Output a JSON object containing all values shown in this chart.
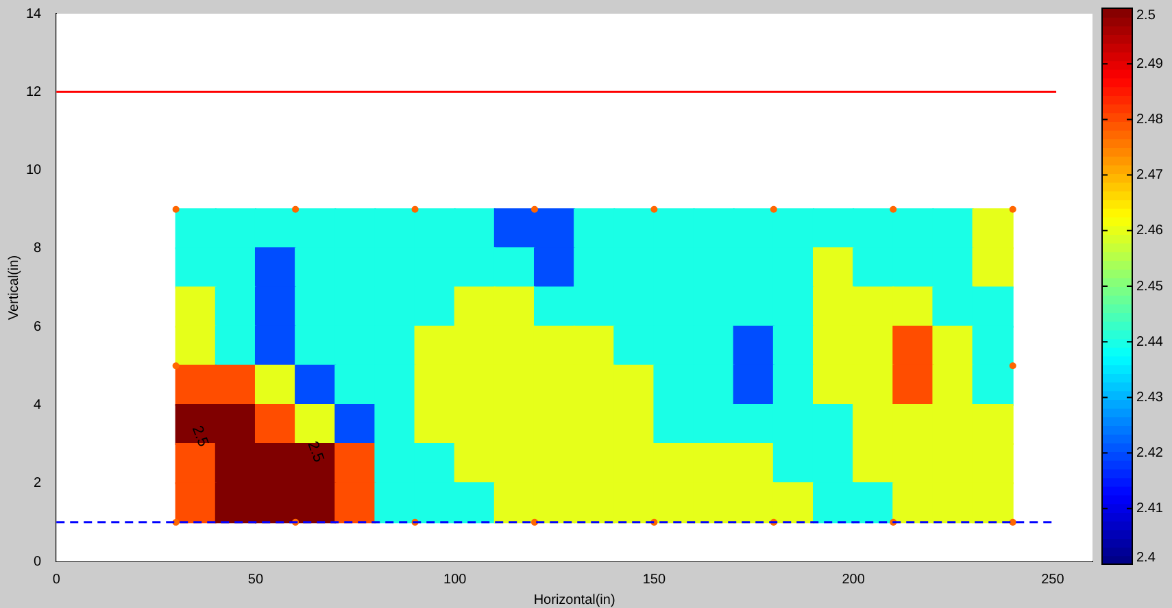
{
  "chart_data": {
    "type": "scatter",
    "xlabel": "Horizontal(in)",
    "ylabel": "Vertical(in)",
    "xlim": [
      0,
      260
    ],
    "xticks": [
      0,
      50,
      100,
      150,
      200,
      250
    ],
    "ylim": [
      0,
      14
    ],
    "yticks": [
      0,
      2,
      4,
      6,
      8,
      10,
      12,
      14
    ],
    "clim": [
      2.4,
      2.5
    ],
    "cticks": [
      2.4,
      2.41,
      2.42,
      2.43,
      2.44,
      2.45,
      2.46,
      2.47,
      2.48,
      2.49,
      2.5
    ],
    "series": [
      {
        "type": "scatter",
        "marker": "square",
        "x": [
          35,
          45,
          55,
          65,
          75,
          85,
          95,
          105,
          115,
          125,
          135,
          145,
          155,
          165,
          175,
          185,
          195,
          205,
          215,
          225,
          235,
          35,
          45,
          55,
          65,
          75,
          85,
          95,
          105,
          115,
          125,
          135,
          145,
          155,
          165,
          175,
          185,
          195,
          205,
          215,
          225,
          235,
          35,
          45,
          55,
          65,
          75,
          85,
          95,
          105,
          115,
          125,
          135,
          145,
          155,
          165,
          175,
          185,
          195,
          205,
          215,
          225,
          235,
          35,
          45,
          55,
          65,
          75,
          85,
          95,
          105,
          115,
          125,
          135,
          145,
          155,
          165,
          175,
          185,
          195,
          205,
          215,
          225,
          235,
          35,
          45,
          55,
          65,
          75,
          85,
          95,
          105,
          115,
          125,
          135,
          145,
          155,
          165,
          175,
          185,
          195,
          205,
          215,
          225,
          235,
          35,
          45,
          55,
          65,
          75,
          85,
          95,
          105,
          115,
          125,
          135,
          145,
          155,
          165,
          175,
          185,
          195,
          205,
          215,
          225,
          235,
          35,
          45,
          55,
          65,
          75,
          85,
          95,
          105,
          115,
          125,
          135,
          145,
          155,
          165,
          175,
          185,
          195,
          205,
          215,
          225,
          235,
          35,
          45,
          55,
          65,
          75,
          85,
          95,
          105,
          115,
          125,
          135,
          145,
          155,
          165,
          175,
          185,
          195,
          205,
          215,
          225,
          235
        ],
        "values": [
          8.5,
          8.5,
          8.5,
          8.5,
          8.5,
          8.5,
          8.5,
          8.5,
          8.5,
          8.5,
          8.5,
          8.5,
          8.5,
          8.5,
          8.5,
          8.5,
          8.5,
          8.5,
          8.5,
          8.5,
          8.5,
          7.5,
          7.5,
          7.5,
          7.5,
          7.5,
          7.5,
          7.5,
          7.5,
          7.5,
          7.5,
          7.5,
          7.5,
          7.5,
          7.5,
          7.5,
          7.5,
          7.5,
          7.5,
          7.5,
          7.5,
          7.5,
          6.5,
          6.5,
          6.5,
          6.5,
          6.5,
          6.5,
          6.5,
          6.5,
          6.5,
          6.5,
          6.5,
          6.5,
          6.5,
          6.5,
          6.5,
          6.5,
          6.5,
          6.5,
          6.5,
          6.5,
          6.5,
          5.5,
          5.5,
          5.5,
          5.5,
          5.5,
          5.5,
          5.5,
          5.5,
          5.5,
          5.5,
          5.5,
          5.5,
          5.5,
          5.5,
          5.5,
          5.5,
          5.5,
          5.5,
          5.5,
          5.5,
          5.5,
          4.5,
          4.5,
          4.5,
          4.5,
          4.5,
          4.5,
          4.5,
          4.5,
          4.5,
          4.5,
          4.5,
          4.5,
          4.5,
          4.5,
          4.5,
          4.5,
          4.5,
          4.5,
          4.5,
          4.5,
          4.5,
          3.5,
          3.5,
          3.5,
          3.5,
          3.5,
          3.5,
          3.5,
          3.5,
          3.5,
          3.5,
          3.5,
          3.5,
          3.5,
          3.5,
          3.5,
          3.5,
          3.5,
          3.5,
          3.5,
          3.5,
          3.5,
          2.5,
          2.5,
          2.5,
          2.5,
          2.5,
          2.5,
          2.5,
          2.5,
          2.5,
          2.5,
          2.5,
          2.5,
          2.5,
          2.5,
          2.5,
          2.5,
          2.5,
          2.5,
          2.5,
          2.5,
          2.5,
          1.5,
          1.5,
          1.5,
          1.5,
          1.5,
          1.5,
          1.5,
          1.5,
          1.5,
          1.5,
          1.5,
          1.5,
          1.5,
          1.5,
          1.5,
          1.5,
          1.5,
          1.5,
          1.5,
          1.5,
          1.5
        ],
        "colors": [
          "#1affe6",
          "#1affe6",
          "#1affe6",
          "#1affe6",
          "#1affe6",
          "#1affe6",
          "#1affe6",
          "#1affe6",
          "#004dff",
          "#004dff",
          "#1affe6",
          "#1affe6",
          "#1affe6",
          "#1affe6",
          "#1affe6",
          "#1affe6",
          "#1affe6",
          "#1affe6",
          "#1affe6",
          "#1affe6",
          "#e6ff1a",
          "#1affe6",
          "#1affe6",
          "#004dff",
          "#1affe6",
          "#1affe6",
          "#1affe6",
          "#1affe6",
          "#1affe6",
          "#1affe6",
          "#004dff",
          "#1affe6",
          "#1affe6",
          "#1affe6",
          "#1affe6",
          "#1affe6",
          "#1affe6",
          "#e6ff1a",
          "#1affe6",
          "#1affe6",
          "#1affe6",
          "#e6ff1a",
          "#e6ff1a",
          "#1affe6",
          "#004dff",
          "#1affe6",
          "#1affe6",
          "#1affe6",
          "#1affe6",
          "#e6ff1a",
          "#e6ff1a",
          "#1affe6",
          "#1affe6",
          "#1affe6",
          "#1affe6",
          "#1affe6",
          "#1affe6",
          "#1affe6",
          "#e6ff1a",
          "#e6ff1a",
          "#e6ff1a",
          "#1affe6",
          "#1affe6",
          "#e6ff1a",
          "#1affe6",
          "#004dff",
          "#1affe6",
          "#1affe6",
          "#1affe6",
          "#e6ff1a",
          "#e6ff1a",
          "#e6ff1a",
          "#e6ff1a",
          "#e6ff1a",
          "#1affe6",
          "#1affe6",
          "#1affe6",
          "#004dff",
          "#1affe6",
          "#e6ff1a",
          "#e6ff1a",
          "#ff4d00",
          "#e6ff1a",
          "#1affe6",
          "#ff4d00",
          "#ff4d00",
          "#e6ff1a",
          "#004dff",
          "#1affe6",
          "#1affe6",
          "#e6ff1a",
          "#e6ff1a",
          "#e6ff1a",
          "#e6ff1a",
          "#e6ff1a",
          "#e6ff1a",
          "#1affe6",
          "#1affe6",
          "#004dff",
          "#1affe6",
          "#e6ff1a",
          "#e6ff1a",
          "#ff4d00",
          "#e6ff1a",
          "#1affe6",
          "#800000",
          "#800000",
          "#ff4d00",
          "#e6ff1a",
          "#004dff",
          "#1affe6",
          "#e6ff1a",
          "#e6ff1a",
          "#e6ff1a",
          "#e6ff1a",
          "#e6ff1a",
          "#e6ff1a",
          "#1affe6",
          "#1affe6",
          "#1affe6",
          "#1affe6",
          "#1affe6",
          "#e6ff1a",
          "#e6ff1a",
          "#e6ff1a",
          "#e6ff1a",
          "#ff4d00",
          "#800000",
          "#800000",
          "#800000",
          "#ff4d00",
          "#1affe6",
          "#1affe6",
          "#e6ff1a",
          "#e6ff1a",
          "#e6ff1a",
          "#e6ff1a",
          "#e6ff1a",
          "#e6ff1a",
          "#e6ff1a",
          "#e6ff1a",
          "#1affe6",
          "#1affe6",
          "#e6ff1a",
          "#e6ff1a",
          "#e6ff1a",
          "#e6ff1a",
          "#ff4d00",
          "#800000",
          "#800000",
          "#800000",
          "#ff4d00",
          "#1affe6",
          "#1affe6",
          "#1affe6",
          "#e6ff1a",
          "#e6ff1a",
          "#e6ff1a",
          "#e6ff1a",
          "#e6ff1a",
          "#e6ff1a",
          "#e6ff1a",
          "#e6ff1a",
          "#1affe6",
          "#1affe6",
          "#e6ff1a",
          "#e6ff1a",
          "#e6ff1a"
        ]
      },
      {
        "type": "scatter",
        "color": "#ff6600",
        "marker": "circle",
        "x": [
          30,
          60,
          90,
          120,
          150,
          180,
          210,
          240,
          30,
          60,
          90,
          120,
          150,
          180,
          210,
          240,
          30,
          240
        ],
        "values": [
          9,
          9,
          9,
          9,
          9,
          9,
          9,
          9,
          1,
          1,
          1,
          1,
          1,
          1,
          1,
          1,
          5,
          5
        ]
      }
    ],
    "ref_lines": [
      {
        "axis": "y",
        "value": 12,
        "color": "#ff0000",
        "line_style": "solid"
      },
      {
        "axis": "y",
        "value": 1,
        "color": "#0000ff",
        "line_style": "dashed"
      }
    ],
    "annotations": [
      "2.5",
      "2.5"
    ],
    "grid": false,
    "legend": false
  }
}
